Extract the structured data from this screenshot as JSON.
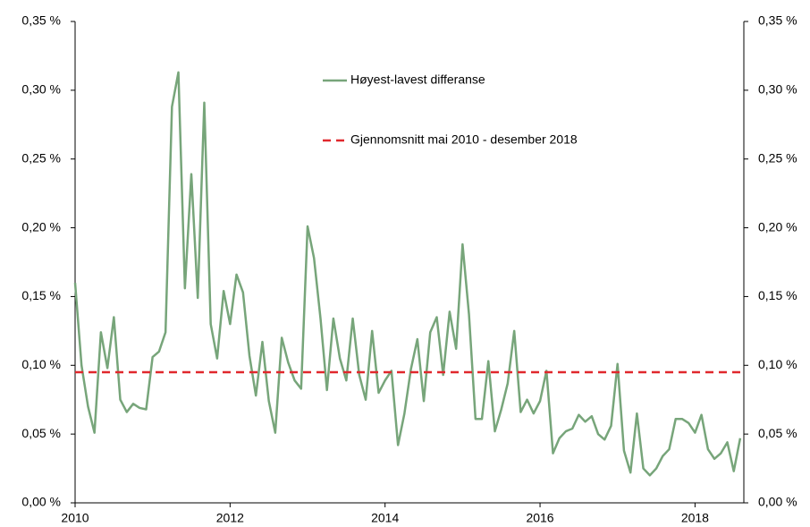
{
  "chart_data": {
    "type": "line",
    "x": [
      2010,
      2010.083,
      2010.167,
      2010.25,
      2010.333,
      2010.417,
      2010.5,
      2010.583,
      2010.667,
      2010.75,
      2010.833,
      2010.917,
      2011,
      2011.083,
      2011.167,
      2011.25,
      2011.333,
      2011.417,
      2011.5,
      2011.583,
      2011.667,
      2011.75,
      2011.833,
      2011.917,
      2012,
      2012.083,
      2012.167,
      2012.25,
      2012.333,
      2012.417,
      2012.5,
      2012.583,
      2012.667,
      2012.75,
      2012.833,
      2012.917,
      2013,
      2013.083,
      2013.167,
      2013.25,
      2013.333,
      2013.417,
      2013.5,
      2013.583,
      2013.667,
      2013.75,
      2013.833,
      2013.917,
      2014,
      2014.083,
      2014.167,
      2014.25,
      2014.333,
      2014.417,
      2014.5,
      2014.583,
      2014.667,
      2014.75,
      2014.833,
      2014.917,
      2015,
      2015.083,
      2015.167,
      2015.25,
      2015.333,
      2015.417,
      2015.5,
      2015.583,
      2015.667,
      2015.75,
      2015.833,
      2015.917,
      2016,
      2016.083,
      2016.167,
      2016.25,
      2016.333,
      2016.417,
      2016.5,
      2016.583,
      2016.667,
      2016.75,
      2016.833,
      2016.917,
      2017,
      2017.083,
      2017.167,
      2017.25,
      2017.333,
      2017.417,
      2017.5,
      2017.583,
      2017.667,
      2017.75,
      2017.833,
      2017.917,
      2018,
      2018.083,
      2018.167,
      2018.25,
      2018.333,
      2018.417,
      2018.5,
      2018.583
    ],
    "series": [
      {
        "name": "Høyest-lavest differanse",
        "color": "#77a57a",
        "values": [
          0.16,
          0.1,
          0.07,
          0.051,
          0.124,
          0.098,
          0.135,
          0.075,
          0.066,
          0.072,
          0.069,
          0.068,
          0.106,
          0.11,
          0.124,
          0.288,
          0.313,
          0.156,
          0.239,
          0.149,
          0.291,
          0.13,
          0.105,
          0.154,
          0.13,
          0.166,
          0.153,
          0.107,
          0.078,
          0.117,
          0.074,
          0.051,
          0.12,
          0.102,
          0.089,
          0.083,
          0.201,
          0.178,
          0.134,
          0.082,
          0.134,
          0.105,
          0.089,
          0.134,
          0.093,
          0.075,
          0.125,
          0.08,
          0.089,
          0.096,
          0.042,
          0.065,
          0.097,
          0.119,
          0.074,
          0.124,
          0.135,
          0.093,
          0.139,
          0.112,
          0.188,
          0.137,
          0.061,
          0.061,
          0.103,
          0.052,
          0.068,
          0.087,
          0.125,
          0.066,
          0.075,
          0.065,
          0.074,
          0.096,
          0.036,
          0.047,
          0.052,
          0.054,
          0.064,
          0.059,
          0.063,
          0.05,
          0.046,
          0.056,
          0.101,
          0.038,
          0.022,
          0.065,
          0.025,
          0.02,
          0.025,
          0.034,
          0.039,
          0.061,
          0.061,
          0.058,
          0.051,
          0.064,
          0.039,
          0.032,
          0.036,
          0.044,
          0.023,
          0.047
        ]
      },
      {
        "name": "Gjennomsnitt mai 2010 - desember 2018",
        "color": "#e0282d",
        "dashed": true,
        "value": 0.095
      }
    ],
    "xlim": [
      2010,
      2018.63
    ],
    "xticks": [
      2010,
      2012,
      2014,
      2016,
      2018
    ],
    "ylim": [
      0,
      0.35
    ],
    "yticks": [
      {
        "value": 0,
        "label": "0,00 %"
      },
      {
        "value": 0.05,
        "label": "0,05 %"
      },
      {
        "value": 0.1,
        "label": "0,10 %"
      },
      {
        "value": 0.15,
        "label": "0,15 %"
      },
      {
        "value": 0.2,
        "label": "0,20 %"
      },
      {
        "value": 0.25,
        "label": "0,25 %"
      },
      {
        "value": 0.3,
        "label": "0,30 %"
      },
      {
        "value": 0.35,
        "label": "0,35 %"
      }
    ],
    "y2lim": [
      0,
      0.35
    ],
    "y2ticks": [
      {
        "value": 0,
        "label": "0,00 %"
      },
      {
        "value": 0.05,
        "label": "0,05 %"
      },
      {
        "value": 0.1,
        "label": "0,10 %"
      },
      {
        "value": 0.15,
        "label": "0,15 %"
      },
      {
        "value": 0.2,
        "label": "0,20 %"
      },
      {
        "value": 0.25,
        "label": "0,25 %"
      },
      {
        "value": 0.3,
        "label": "0,30 %"
      },
      {
        "value": 0.35,
        "label": "0,35 %"
      }
    ],
    "legend": "top-center",
    "grid": false
  }
}
